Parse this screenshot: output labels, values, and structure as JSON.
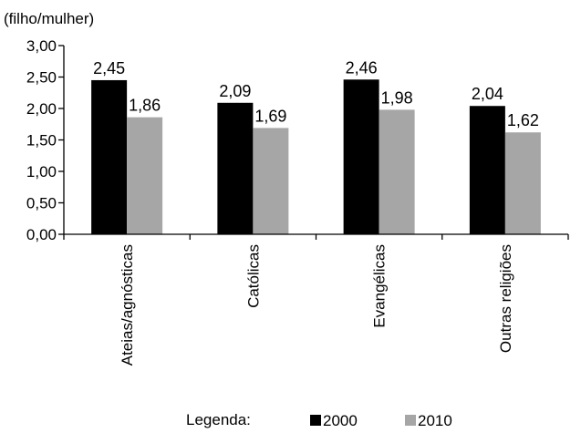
{
  "chart_data": {
    "type": "bar",
    "ylabel": "(filho/mulher)",
    "ylim": [
      0,
      3
    ],
    "yticks": [
      "0,00",
      "0,50",
      "1,00",
      "1,50",
      "2,00",
      "2,50",
      "3,00"
    ],
    "yticks_values": [
      0,
      0.5,
      1,
      1.5,
      2,
      2.5,
      3
    ],
    "categories": [
      "Ateias/agnósticas",
      "Católicas",
      "Evangélicas",
      "Outras religiões"
    ],
    "series": [
      {
        "name": "2000",
        "color": "#000000",
        "values": [
          2.45,
          2.09,
          2.46,
          2.04
        ],
        "labels": [
          "2,45",
          "2,09",
          "2,46",
          "2,04"
        ]
      },
      {
        "name": "2010",
        "color": "#a6a6a6",
        "values": [
          1.86,
          1.69,
          1.98,
          1.62
        ],
        "labels": [
          "1,86",
          "1,69",
          "1,98",
          "1,62"
        ]
      }
    ],
    "legend": {
      "title": "Legenda:",
      "position": "bottom"
    },
    "grid": false
  }
}
